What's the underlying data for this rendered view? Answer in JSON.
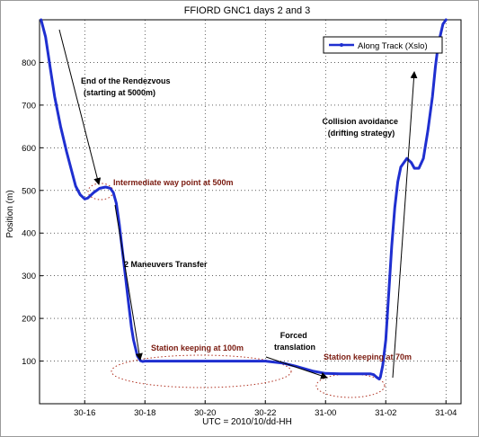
{
  "chart_data": {
    "type": "line",
    "title": "FFIORD GNC1 days 2 and 3",
    "xlabel": "UTC = 2010/10/dd-HH",
    "ylabel": "Position (m)",
    "x_ticks": [
      "30-16",
      "30-18",
      "30-20",
      "30-22",
      "31-00",
      "31-02",
      "31-04"
    ],
    "x_tick_hours": [
      16,
      18,
      20,
      22,
      24,
      26,
      28
    ],
    "xlim_hours": [
      14.5,
      28.5
    ],
    "y_ticks": [
      100,
      200,
      300,
      400,
      500,
      600,
      700,
      800
    ],
    "ylim": [
      0,
      900
    ],
    "grid": true,
    "legend_position": "top-right",
    "series": [
      {
        "name": "Along Track (Xslo)",
        "color": "#1f2fd0",
        "x_hours": [
          14.55,
          14.7,
          14.85,
          15.0,
          15.2,
          15.4,
          15.55,
          15.7,
          15.85,
          16.0,
          16.1,
          16.3,
          16.5,
          16.7,
          16.85,
          16.95,
          17.05,
          17.15,
          17.25,
          17.35,
          17.45,
          17.55,
          17.62,
          17.75,
          17.85,
          17.92,
          18.0,
          18.2,
          18.5,
          19.0,
          20.0,
          21.0,
          22.0,
          22.6,
          23.0,
          23.3,
          23.6,
          24.0,
          24.5,
          25.0,
          25.3,
          25.5,
          25.6,
          25.7,
          25.78,
          25.82,
          25.9,
          26.0,
          26.1,
          26.2,
          26.3,
          26.4,
          26.5,
          26.7,
          26.85,
          26.95,
          27.1,
          27.25,
          27.4,
          27.55,
          27.65,
          27.72,
          27.8,
          27.9,
          28.0
        ],
        "y": [
          900,
          860,
          790,
          720,
          650,
          590,
          550,
          510,
          490,
          480,
          482,
          495,
          505,
          508,
          505,
          495,
          470,
          420,
          360,
          300,
          240,
          180,
          150,
          112,
          101,
          99,
          100,
          100,
          100,
          100,
          100,
          100,
          100,
          95,
          88,
          82,
          76,
          71,
          70,
          70,
          70,
          70,
          68,
          62,
          58,
          62,
          90,
          150,
          260,
          370,
          460,
          520,
          555,
          575,
          565,
          552,
          552,
          575,
          640,
          720,
          790,
          830,
          860,
          890,
          900
        ]
      }
    ],
    "annotations": [
      {
        "text_lines": [
          "End of the Rendezvous",
          "(starting at 5000m)"
        ],
        "color": "#000000"
      },
      {
        "text_lines": [
          "Intermediate way point at 500m"
        ],
        "color": "#7a1a0f"
      },
      {
        "text_lines": [
          "2 Maneuvers Transfer"
        ],
        "color": "#000000"
      },
      {
        "text_lines": [
          "Station keeping at 100m"
        ],
        "color": "#7a1a0f"
      },
      {
        "text_lines": [
          "Forced",
          "translation"
        ],
        "color": "#000000"
      },
      {
        "text_lines": [
          "Station keeping at 70m"
        ],
        "color": "#7a1a0f"
      },
      {
        "text_lines": [
          "Collision avoidance",
          "(drifting strategy)"
        ],
        "color": "#000000"
      }
    ]
  }
}
